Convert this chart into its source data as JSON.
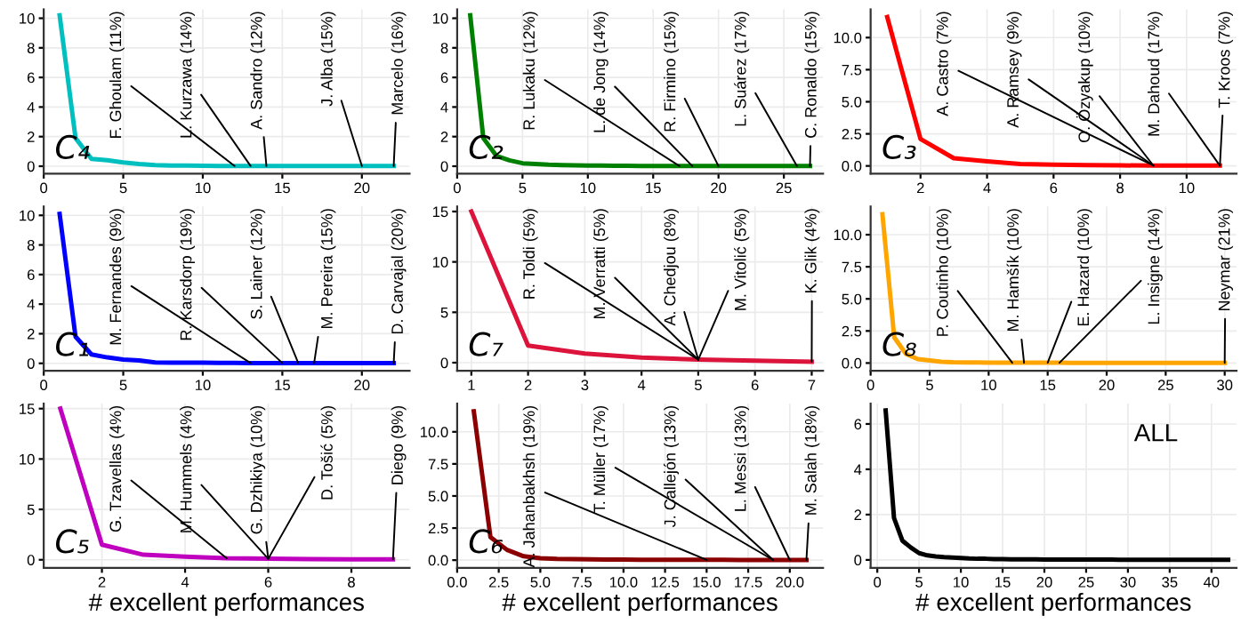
{
  "chart_data": [
    {
      "type": "line",
      "title": "C₄",
      "x": [
        1,
        2,
        3,
        4,
        5,
        6,
        7,
        8,
        9,
        10,
        11,
        12,
        13,
        14,
        15,
        16,
        17,
        18,
        19,
        20,
        21,
        22
      ],
      "series": [
        {
          "color": "#00bfbf",
          "values": [
            10.2,
            1.9,
            0.5,
            0.4,
            0.25,
            0.15,
            0.08,
            0.05,
            0.04,
            0.03,
            0.02,
            0.02,
            0.02,
            0.01,
            0.01,
            0.01,
            0.01,
            0.01,
            0.01,
            0.01,
            0.01,
            0.01
          ]
        }
      ],
      "xlim": [
        0,
        23
      ],
      "xticks": [
        0,
        5,
        10,
        15,
        20
      ],
      "ylim": [
        -0.5,
        10.6
      ],
      "yticks": [
        0,
        2,
        4,
        6,
        8,
        10
      ],
      "grid": true,
      "annotations": [
        {
          "text": "F. Ghoulam (11%)",
          "x": 12,
          "y": 0.02
        },
        {
          "text": "L. Kurzawa (14%)",
          "x": 13,
          "y": 0.02
        },
        {
          "text": "A. Sandro (12%)",
          "x": 14,
          "y": 0.01
        },
        {
          "text": "J. Alba (15%)",
          "x": 20,
          "y": 0.01
        },
        {
          "text": "Marcelo (16%)",
          "x": 22,
          "y": 0.01
        }
      ]
    },
    {
      "type": "line",
      "title": "C₂",
      "x": [
        1,
        2,
        3,
        4,
        5,
        6,
        7,
        8,
        9,
        10,
        11,
        12,
        13,
        14,
        15,
        16,
        17,
        18,
        19,
        20,
        21,
        22,
        23,
        24,
        25,
        26,
        27
      ],
      "series": [
        {
          "color": "#008000",
          "values": [
            10.2,
            1.9,
            0.7,
            0.4,
            0.2,
            0.15,
            0.1,
            0.08,
            0.06,
            0.05,
            0.04,
            0.03,
            0.03,
            0.02,
            0.02,
            0.02,
            0.02,
            0.01,
            0.01,
            0.01,
            0.01,
            0.01,
            0.01,
            0.01,
            0.01,
            0.01,
            0.01
          ]
        }
      ],
      "xlim": [
        0,
        28
      ],
      "xticks": [
        0,
        5,
        10,
        15,
        20,
        25
      ],
      "ylim": [
        -0.5,
        10.6
      ],
      "yticks": [
        0,
        2,
        4,
        6,
        8,
        10
      ],
      "grid": true,
      "annotations": [
        {
          "text": "R. Lukaku (12%)",
          "x": 17,
          "y": 0.02
        },
        {
          "text": "L. de Jong (14%)",
          "x": 18,
          "y": 0.01
        },
        {
          "text": "R. Firmino (15%)",
          "x": 20,
          "y": 0.01
        },
        {
          "text": "L. Suárez (17%)",
          "x": 26,
          "y": 0.01
        },
        {
          "text": "C. Ronaldo (15%)",
          "x": 27,
          "y": 0.01
        }
      ]
    },
    {
      "type": "line",
      "title": "C₃",
      "x": [
        1,
        2,
        3,
        4,
        5,
        6,
        7,
        8,
        9,
        10,
        11
      ],
      "series": [
        {
          "color": "#ff0000",
          "values": [
            11.6,
            2.1,
            0.6,
            0.35,
            0.15,
            0.1,
            0.06,
            0.04,
            0.03,
            0.02,
            0.02
          ]
        }
      ],
      "xlim": [
        0.5,
        11.5
      ],
      "xticks": [
        2,
        4,
        6,
        8,
        10
      ],
      "ylim": [
        -0.6,
        12.2
      ],
      "yticks": [
        {
          "value": 0,
          "label": "0.0"
        },
        {
          "value": 2.5,
          "label": "2.5"
        },
        {
          "value": 5,
          "label": "5.0"
        },
        {
          "value": 7.5,
          "label": "7.5"
        },
        {
          "value": 10,
          "label": "10.0"
        }
      ],
      "grid": true,
      "annotations": [
        {
          "text": "A. Castro (7%)",
          "x": 9,
          "y": 0.03
        },
        {
          "text": "A. Ramsey (9%)",
          "x": 9,
          "y": 0.03
        },
        {
          "text": "O. Özyakup (10%)",
          "x": 9,
          "y": 0.03
        },
        {
          "text": "M. Dahoud (17%)",
          "x": 11,
          "y": 0.02
        },
        {
          "text": "T. Kroos (7%)",
          "x": 11,
          "y": 0.02
        }
      ]
    },
    {
      "type": "line",
      "title": "C₁",
      "x": [
        1,
        2,
        3,
        4,
        5,
        6,
        7,
        8,
        9,
        10,
        11,
        12,
        13,
        14,
        15,
        16,
        17,
        18,
        19,
        20,
        21,
        22
      ],
      "series": [
        {
          "color": "#0000ff",
          "values": [
            10.1,
            1.8,
            0.6,
            0.4,
            0.25,
            0.2,
            0.06,
            0.05,
            0.04,
            0.04,
            0.03,
            0.03,
            0.02,
            0.02,
            0.02,
            0.02,
            0.02,
            0.01,
            0.01,
            0.01,
            0.01,
            0.01
          ]
        }
      ],
      "xlim": [
        0,
        23
      ],
      "xticks": [
        0,
        5,
        10,
        15,
        20
      ],
      "ylim": [
        -0.5,
        10.6
      ],
      "yticks": [
        0,
        2,
        4,
        6,
        8,
        10
      ],
      "grid": true,
      "annotations": [
        {
          "text": "M. Fernandes (9%)",
          "x": 13,
          "y": 0.02
        },
        {
          "text": "R. Karsdorp (19%)",
          "x": 15,
          "y": 0.02
        },
        {
          "text": "S. Lainer (12%)",
          "x": 16,
          "y": 0.02
        },
        {
          "text": "M. Pereira (15%)",
          "x": 17,
          "y": 0.02
        },
        {
          "text": "D. Carvajal (20%)",
          "x": 22,
          "y": 0.01
        }
      ]
    },
    {
      "type": "line",
      "title": "C₇",
      "x": [
        1,
        2,
        3,
        4,
        5,
        6,
        7
      ],
      "series": [
        {
          "color": "#dc143c",
          "values": [
            15,
            1.7,
            0.9,
            0.5,
            0.3,
            0.2,
            0.1
          ]
        }
      ],
      "xlim": [
        0.75,
        7.2
      ],
      "xticks": [
        1,
        2,
        3,
        4,
        5,
        6,
        7
      ],
      "ylim": [
        -0.8,
        15.5
      ],
      "yticks": [
        0,
        5,
        10,
        15
      ],
      "grid": true,
      "annotations": [
        {
          "text": "R. Toldi (5%)",
          "x": 5,
          "y": 0.3
        },
        {
          "text": "M. Verratti (5%)",
          "x": 5,
          "y": 0.3
        },
        {
          "text": "A. Chedjou (8%)",
          "x": 5,
          "y": 0.3
        },
        {
          "text": "M. Vitolić (5%)",
          "x": 5,
          "y": 0.3
        },
        {
          "text": "K. Glik (4%)",
          "x": 7,
          "y": 0.1
        }
      ]
    },
    {
      "type": "line",
      "title": "C₈",
      "x": [
        1,
        2,
        3,
        4,
        5,
        6,
        7,
        8,
        9,
        10,
        11,
        12,
        13,
        14,
        15,
        16,
        17,
        18,
        19,
        20,
        21,
        22,
        23,
        24,
        25,
        26,
        27,
        28,
        29,
        30
      ],
      "series": [
        {
          "color": "#ffa500",
          "values": [
            11.6,
            2.0,
            0.7,
            0.3,
            0.2,
            0.1,
            0.06,
            0.05,
            0.04,
            0.03,
            0.03,
            0.02,
            0.02,
            0.02,
            0.02,
            0.02,
            0.01,
            0.01,
            0.01,
            0.01,
            0.01,
            0.01,
            0.01,
            0.01,
            0.01,
            0.01,
            0.01,
            0.01,
            0.01,
            0.01
          ]
        }
      ],
      "xlim": [
        0,
        31
      ],
      "xticks": [
        0,
        5,
        10,
        15,
        20,
        25,
        30
      ],
      "ylim": [
        -0.6,
        12.2
      ],
      "yticks": [
        {
          "value": 0,
          "label": "0.0"
        },
        {
          "value": 2.5,
          "label": "2.5"
        },
        {
          "value": 5,
          "label": "5.0"
        },
        {
          "value": 7.5,
          "label": "7.5"
        },
        {
          "value": 10,
          "label": "10.0"
        }
      ],
      "grid": true,
      "annotations": [
        {
          "text": "P. Coutinho (10%)",
          "x": 12,
          "y": 0.02
        },
        {
          "text": "M. Hamšík (10%)",
          "x": 13,
          "y": 0.02
        },
        {
          "text": "E. Hazard (10%)",
          "x": 15,
          "y": 0.02
        },
        {
          "text": "L. Insigne (14%)",
          "x": 16,
          "y": 0.02
        },
        {
          "text": "Neymar (21%)",
          "x": 30,
          "y": 0.01
        }
      ]
    },
    {
      "type": "line",
      "title": "C₅",
      "x": [
        1,
        2,
        3,
        4,
        5,
        6,
        7,
        8,
        9
      ],
      "xlabel": "# excellent performances",
      "series": [
        {
          "color": "#bf00bf",
          "values": [
            15,
            1.5,
            0.5,
            0.3,
            0.15,
            0.1,
            0.06,
            0.05,
            0.04
          ]
        }
      ],
      "xlim": [
        0.6,
        9.4
      ],
      "xticks": [
        2,
        4,
        6,
        8
      ],
      "ylim": [
        -0.8,
        15.5
      ],
      "yticks": [
        0,
        5,
        10,
        15
      ],
      "grid": true,
      "annotations": [
        {
          "text": "G. Tzavellas (4%)",
          "x": 5,
          "y": 0.15
        },
        {
          "text": "M. Hummels (4%)",
          "x": 6,
          "y": 0.1
        },
        {
          "text": "G. Dzhikiya (10%)",
          "x": 6,
          "y": 0.1
        },
        {
          "text": "D. Tošić (5%)",
          "x": 6,
          "y": 0.1
        },
        {
          "text": "Diego (9%)",
          "x": 9,
          "y": 0.04
        }
      ]
    },
    {
      "type": "line",
      "title": "C₆",
      "x": [
        1,
        2,
        3,
        4,
        5,
        6,
        7,
        8,
        9,
        10,
        11,
        12,
        13,
        14,
        15,
        16,
        17,
        18,
        19,
        20,
        21
      ],
      "xlabel": "# excellent performances",
      "series": [
        {
          "color": "#8b0000",
          "values": [
            11.6,
            1.8,
            0.8,
            0.3,
            0.15,
            0.1,
            0.08,
            0.06,
            0.05,
            0.04,
            0.03,
            0.03,
            0.02,
            0.02,
            0.02,
            0.02,
            0.01,
            0.01,
            0.01,
            0.01,
            0.01
          ]
        }
      ],
      "xlim": [
        0,
        22
      ],
      "xticks": [
        {
          "value": 0,
          "label": "0.0"
        },
        {
          "value": 2.5,
          "label": "2.5"
        },
        {
          "value": 5,
          "label": "5.0"
        },
        {
          "value": 7.5,
          "label": "7.5"
        },
        {
          "value": 10,
          "label": "10.0"
        },
        {
          "value": 12.5,
          "label": "12.5"
        },
        {
          "value": 15,
          "label": "15.0"
        },
        {
          "value": 17.5,
          "label": "17.5"
        },
        {
          "value": 20,
          "label": "20.0"
        }
      ],
      "ylim": [
        -0.6,
        12.2
      ],
      "yticks": [
        {
          "value": 0,
          "label": "0.0"
        },
        {
          "value": 2.5,
          "label": "2.5"
        },
        {
          "value": 5,
          "label": "5.0"
        },
        {
          "value": 7.5,
          "label": "7.5"
        },
        {
          "value": 10,
          "label": "10.0"
        }
      ],
      "grid": true,
      "annotations": [
        {
          "text": "A. Jahanbakhsh (19%)",
          "x": 15,
          "y": 0.02
        },
        {
          "text": "T. Müller (17%)",
          "x": 19,
          "y": 0.01
        },
        {
          "text": "J. Callejón (13%)",
          "x": 19,
          "y": 0.01
        },
        {
          "text": "L. Messi (13%)",
          "x": 20,
          "y": 0.01
        },
        {
          "text": "M. Salah (18%)",
          "x": 21,
          "y": 0.01
        }
      ]
    },
    {
      "type": "line",
      "title": "ALL",
      "x": [
        1,
        2,
        3,
        4,
        5,
        6,
        7,
        8,
        9,
        10,
        11,
        12,
        13,
        14,
        15,
        16,
        17,
        18,
        19,
        20,
        21,
        22,
        23,
        24,
        25,
        26,
        27,
        28,
        29,
        30,
        31,
        32,
        33,
        34,
        35,
        36,
        37,
        38,
        39,
        40,
        41,
        42
      ],
      "xlabel": "# excellent performances",
      "series": [
        {
          "color": "#000000",
          "values": [
            6.6,
            1.85,
            0.85,
            0.55,
            0.3,
            0.2,
            0.15,
            0.12,
            0.1,
            0.08,
            0.06,
            0.05,
            0.05,
            0.04,
            0.04,
            0.03,
            0.03,
            0.03,
            0.03,
            0.02,
            0.02,
            0.02,
            0.02,
            0.02,
            0.02,
            0.02,
            0.02,
            0.02,
            0.01,
            0.01,
            0.01,
            0.01,
            0.01,
            0.01,
            0.01,
            0.01,
            0.01,
            0.01,
            0.01,
            0.01,
            0.01,
            0.01
          ]
        }
      ],
      "xlim": [
        -0.8,
        43
      ],
      "xticks": [
        0,
        5,
        10,
        15,
        20,
        25,
        30,
        35,
        40
      ],
      "ylim": [
        -0.35,
        6.9
      ],
      "yticks": [
        0,
        2,
        4,
        6
      ],
      "grid": true
    }
  ]
}
